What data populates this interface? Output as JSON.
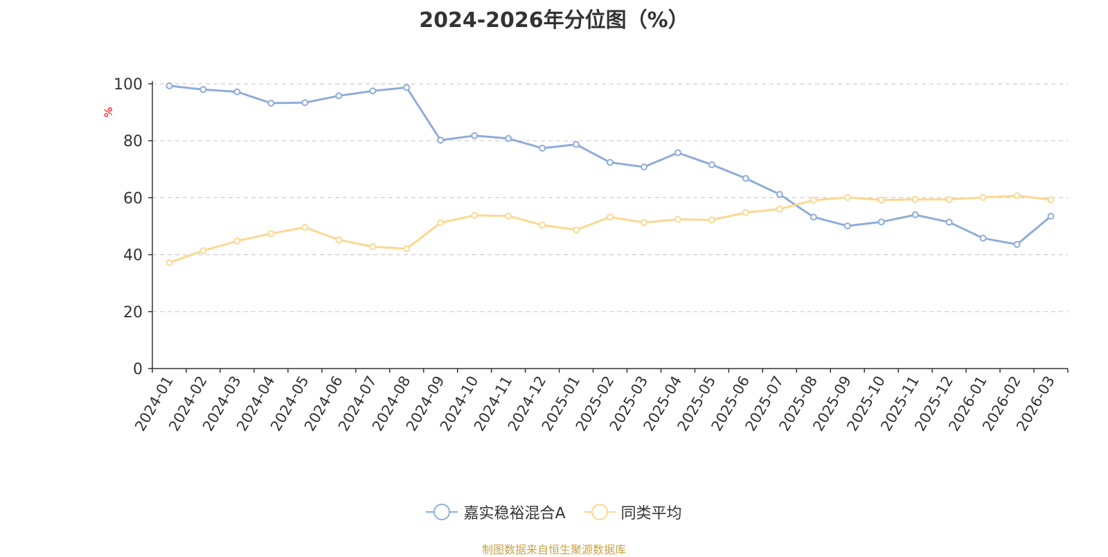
{
  "chart_data": {
    "type": "line",
    "title": "2024-2026年分位图（%）",
    "ylabel": "%",
    "xlabel": "",
    "ylim": [
      0,
      100
    ],
    "yticks": [
      0,
      20,
      40,
      60,
      80,
      100
    ],
    "grid": true,
    "legend_position": "bottom",
    "categories": [
      "2024-01",
      "2024-02",
      "2024-03",
      "2024-04",
      "2024-05",
      "2024-06",
      "2024-07",
      "2024-08",
      "2024-09",
      "2024-10",
      "2024-11",
      "2024-12",
      "2025-01",
      "2025-02",
      "2025-03",
      "2025-04",
      "2025-05",
      "2025-06",
      "2025-07",
      "2025-08",
      "2025-09",
      "2025-10",
      "2025-11",
      "2025-12",
      "2026-01",
      "2026-02",
      "2026-03"
    ],
    "series": [
      {
        "name": "嘉实稳裕混合A",
        "color": "#8eacda",
        "values": [
          99.3,
          98.0,
          97.2,
          93.2,
          93.4,
          95.8,
          97.5,
          98.7,
          80.2,
          81.8,
          80.8,
          77.4,
          78.7,
          72.4,
          70.8,
          75.8,
          71.6,
          66.8,
          61.2,
          53.2,
          50.1,
          51.5,
          54.0,
          51.4,
          45.8,
          43.6,
          53.5
        ]
      },
      {
        "name": "同类平均",
        "color": "#fbd88f",
        "values": [
          37.2,
          41.4,
          44.8,
          47.4,
          49.6,
          45.2,
          42.8,
          42.1,
          51.2,
          53.8,
          53.6,
          50.4,
          48.7,
          53.2,
          51.3,
          52.4,
          52.2,
          54.8,
          56.0,
          59.1,
          60.1,
          59.2,
          59.4,
          59.4,
          60.1,
          60.7,
          59.3
        ]
      }
    ]
  },
  "footer": {
    "text": "制图数据来自恒生聚源数据库",
    "color": "#c9a34a"
  },
  "axis_colors": {
    "axis": "#333333",
    "grid": "#cccccc",
    "ylabel": "#ff0000"
  }
}
